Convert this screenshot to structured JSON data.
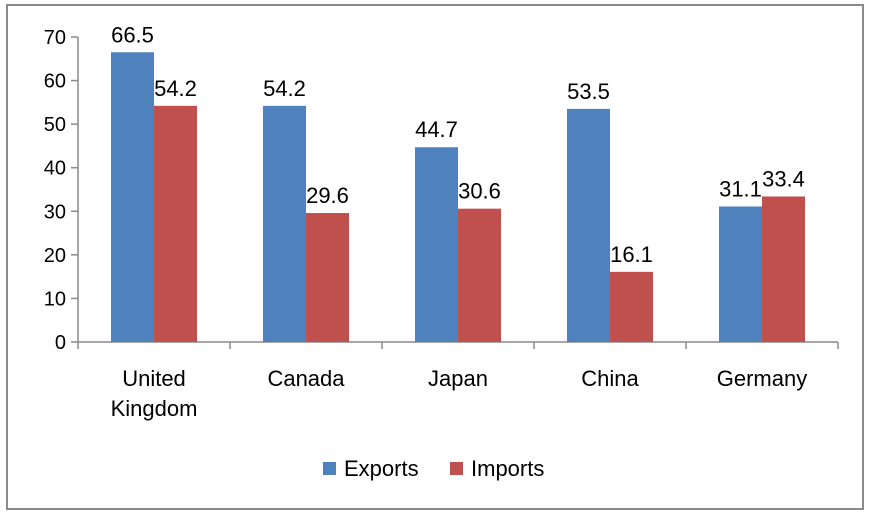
{
  "chart_data": {
    "type": "bar",
    "categories": [
      [
        "United",
        "Kingdom"
      ],
      [
        "Canada"
      ],
      [
        "Japan"
      ],
      [
        "China"
      ],
      [
        "Germany"
      ]
    ],
    "series": [
      {
        "name": "Exports",
        "values": [
          66.5,
          54.2,
          44.7,
          53.5,
          31.1
        ],
        "color": "#4F81BD"
      },
      {
        "name": "Imports",
        "values": [
          54.2,
          29.6,
          30.6,
          16.1,
          33.4
        ],
        "color": "#C0504D"
      }
    ],
    "data_labels": [
      [
        "66.5",
        "54.2",
        "44.7",
        "53.5",
        "31.1"
      ],
      [
        "54.2",
        "29.6",
        "30.6",
        "16.1",
        "33.4"
      ]
    ],
    "yticks": [
      "0",
      "10",
      "20",
      "30",
      "40",
      "50",
      "60",
      "70"
    ],
    "ylim": [
      0,
      70
    ],
    "grid": false,
    "legend_position": "bottom"
  }
}
